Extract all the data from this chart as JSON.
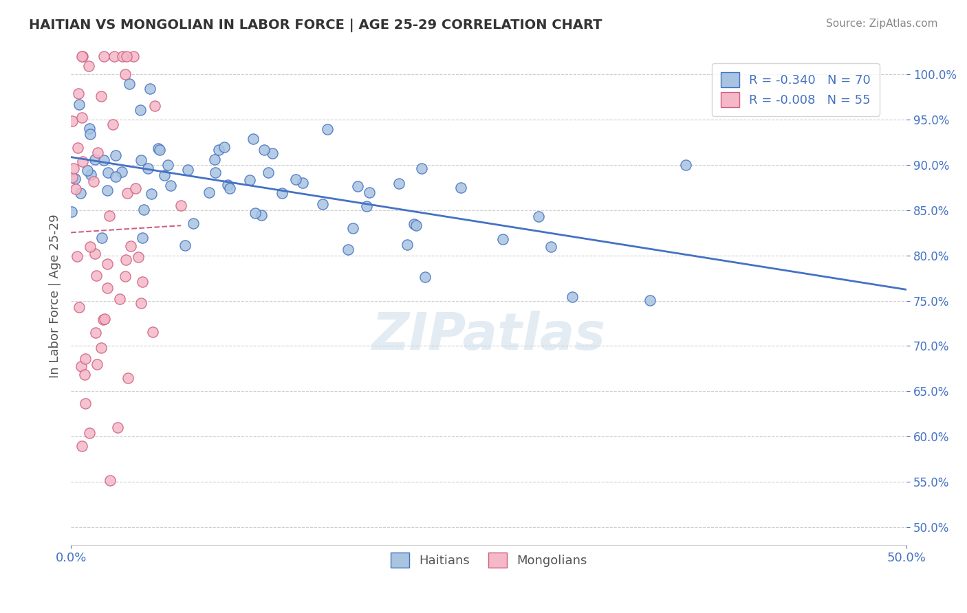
{
  "title": "HAITIAN VS MONGOLIAN IN LABOR FORCE | AGE 25-29 CORRELATION CHART",
  "source_text": "Source: ZipAtlas.com",
  "ylabel": "In Labor Force | Age 25-29",
  "xmin": 0.0,
  "xmax": 0.5,
  "ymin": 0.48,
  "ymax": 1.03,
  "yticks": [
    0.5,
    0.55,
    0.6,
    0.65,
    0.7,
    0.75,
    0.8,
    0.85,
    0.9,
    0.95,
    1.0
  ],
  "ytick_labels": [
    "50.0%",
    "55.0%",
    "60.0%",
    "65.0%",
    "70.0%",
    "75.0%",
    "80.0%",
    "85.0%",
    "90.0%",
    "95.0%",
    "100.0%"
  ],
  "blue_face_color": "#a8c4e0",
  "blue_edge_color": "#4472c4",
  "pink_face_color": "#f4b8c8",
  "pink_edge_color": "#d06080",
  "blue_line_color": "#4472c4",
  "pink_line_color": "#d06080",
  "legend_blue_label": "R = -0.340   N = 70",
  "legend_pink_label": "R = -0.008   N = 55",
  "bottom_legend_blue": "Haitians",
  "bottom_legend_pink": "Mongolians",
  "watermark": "ZIPatlas",
  "title_color": "#333333",
  "axis_label_color": "#4472c4",
  "background_color": "#ffffff",
  "blue_R": -0.34,
  "blue_N": 70,
  "pink_R": -0.008,
  "pink_N": 55
}
